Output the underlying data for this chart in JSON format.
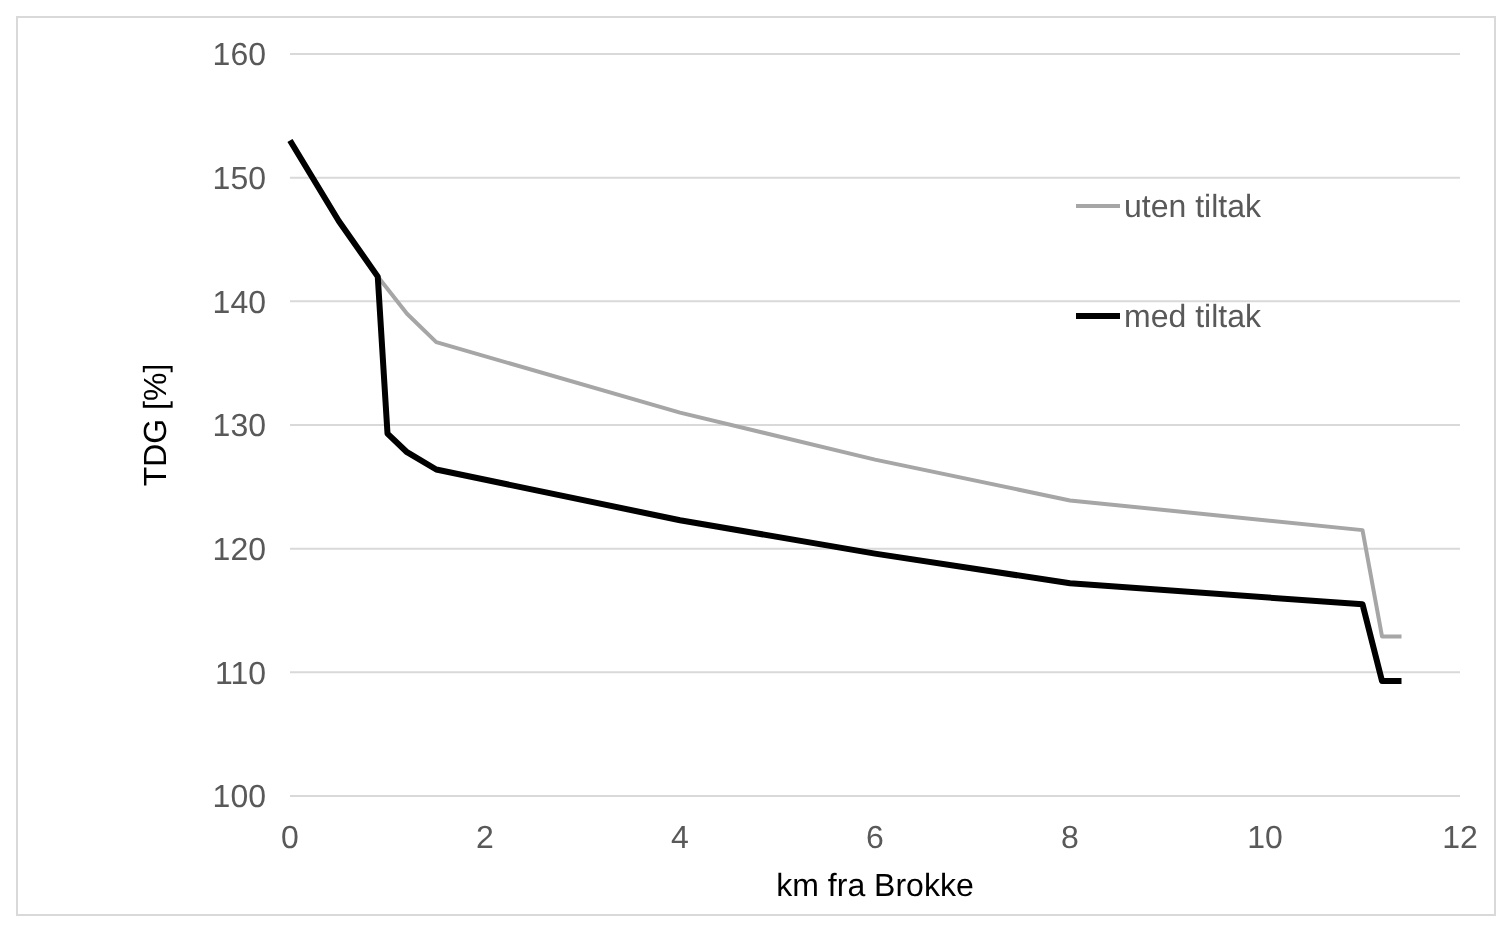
{
  "chart_data": {
    "type": "line",
    "xlabel": "km fra Brokke",
    "ylabel": "TDG [%]",
    "xlim": [
      0,
      12
    ],
    "xticks": [
      0,
      2,
      4,
      6,
      8,
      10,
      12
    ],
    "ylim": [
      100,
      160
    ],
    "yticks": [
      100,
      110,
      120,
      130,
      140,
      150,
      160
    ],
    "grid": "y",
    "legend": "right",
    "marker": "none",
    "line_style": "solid",
    "series": [
      {
        "name": "uten tiltak",
        "color": "#a6a6a6",
        "x": [
          0,
          0.5,
          0.9,
          1.2,
          1.5,
          4,
          6,
          8,
          11,
          11.2,
          11.4
        ],
        "values": [
          153,
          146.5,
          142,
          139,
          136.7,
          131,
          127.2,
          123.9,
          121.5,
          112.9,
          112.9
        ]
      },
      {
        "name": "med tiltak",
        "color": "#000000",
        "x": [
          0,
          0.5,
          0.9,
          1.0,
          1.2,
          1.5,
          4,
          6,
          8,
          11,
          11.2,
          11.4
        ],
        "values": [
          153,
          146.5,
          142,
          129.3,
          127.8,
          126.4,
          122.3,
          119.6,
          117.2,
          115.5,
          109.3,
          109.3
        ]
      }
    ]
  }
}
